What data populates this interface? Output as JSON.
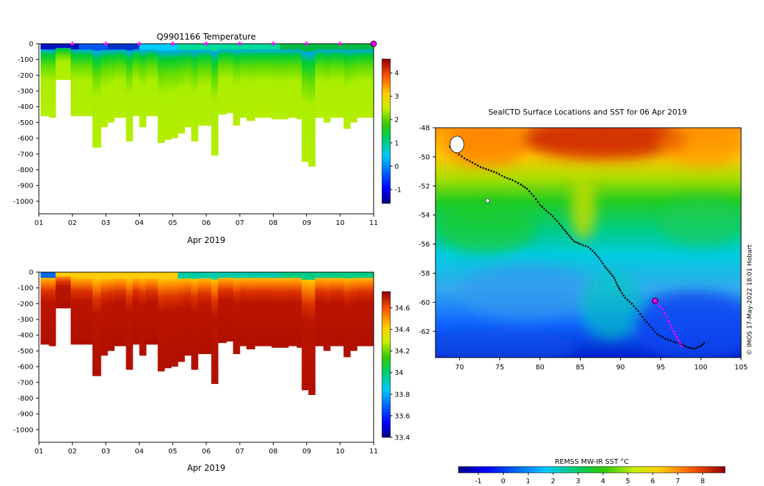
{
  "chart_data": [
    {
      "type": "heatmap",
      "title": "Q9901166  Temperature",
      "xlabel": "Apr 2019",
      "ylabel": "",
      "x_ticks": [
        "01",
        "02",
        "03",
        "04",
        "05",
        "06",
        "07",
        "08",
        "09",
        "10",
        "11"
      ],
      "y_ticks": [
        0,
        -100,
        -200,
        -300,
        -400,
        -500,
        -600,
        -700,
        -800,
        -900,
        -1000
      ],
      "xlim": [
        1,
        11
      ],
      "ylim": [
        -1080,
        0
      ],
      "colorbar": {
        "min": -1.6,
        "max": 4.6,
        "ticks": [
          -1,
          0,
          1,
          2,
          3,
          4
        ]
      },
      "markers_days": [
        2,
        3,
        4,
        5,
        6,
        7,
        8,
        9,
        10
      ],
      "current_marker_day": 11,
      "profiles": [
        {
          "day": 1.05,
          "depth": 460
        },
        {
          "day": 1.3,
          "depth": 470
        },
        {
          "day": 1.5,
          "depth": 230
        },
        {
          "day": 1.7,
          "depth": 230
        },
        {
          "day": 1.95,
          "depth": 460
        },
        {
          "day": 2.2,
          "depth": 460
        },
        {
          "day": 2.45,
          "depth": 460
        },
        {
          "day": 2.6,
          "depth": 660
        },
        {
          "day": 2.85,
          "depth": 530
        },
        {
          "day": 3.05,
          "depth": 500
        },
        {
          "day": 3.25,
          "depth": 470
        },
        {
          "day": 3.45,
          "depth": 470
        },
        {
          "day": 3.6,
          "depth": 620
        },
        {
          "day": 3.8,
          "depth": 460
        },
        {
          "day": 4.0,
          "depth": 530
        },
        {
          "day": 4.2,
          "depth": 460
        },
        {
          "day": 4.4,
          "depth": 460
        },
        {
          "day": 4.55,
          "depth": 630
        },
        {
          "day": 4.75,
          "depth": 610
        },
        {
          "day": 4.95,
          "depth": 600
        },
        {
          "day": 5.15,
          "depth": 570
        },
        {
          "day": 5.35,
          "depth": 530
        },
        {
          "day": 5.55,
          "depth": 620
        },
        {
          "day": 5.75,
          "depth": 520
        },
        {
          "day": 5.95,
          "depth": 520
        },
        {
          "day": 6.15,
          "depth": 710
        },
        {
          "day": 6.35,
          "depth": 450
        },
        {
          "day": 6.6,
          "depth": 440
        },
        {
          "day": 6.8,
          "depth": 520
        },
        {
          "day": 7.0,
          "depth": 470
        },
        {
          "day": 7.2,
          "depth": 490
        },
        {
          "day": 7.45,
          "depth": 470
        },
        {
          "day": 7.7,
          "depth": 470
        },
        {
          "day": 7.95,
          "depth": 480
        },
        {
          "day": 8.2,
          "depth": 480
        },
        {
          "day": 8.45,
          "depth": 470
        },
        {
          "day": 8.7,
          "depth": 480
        },
        {
          "day": 8.85,
          "depth": 750
        },
        {
          "day": 9.05,
          "depth": 780
        },
        {
          "day": 9.25,
          "depth": 470
        },
        {
          "day": 9.5,
          "depth": 500
        },
        {
          "day": 9.7,
          "depth": 470
        },
        {
          "day": 9.9,
          "depth": 470
        },
        {
          "day": 10.1,
          "depth": 540
        },
        {
          "day": 10.3,
          "depth": 500
        },
        {
          "day": 10.5,
          "depth": 470
        },
        {
          "day": 10.8,
          "depth": 470
        }
      ]
    },
    {
      "type": "heatmap",
      "title": "",
      "xlabel": "Apr 2019",
      "ylabel": "",
      "x_ticks": [
        "01",
        "02",
        "03",
        "04",
        "05",
        "06",
        "07",
        "08",
        "09",
        "10",
        "11"
      ],
      "y_ticks": [
        0,
        -100,
        -200,
        -300,
        -400,
        -500,
        -600,
        -700,
        -800,
        -900,
        -1000
      ],
      "xlim": [
        1,
        11
      ],
      "ylim": [
        -1080,
        0
      ],
      "colorbar": {
        "min": 33.4,
        "max": 34.75,
        "ticks": [
          "33.4",
          "33.6",
          "33.8",
          "34",
          "34.2",
          "34.4",
          "34.6"
        ]
      }
    },
    {
      "type": "heatmap",
      "title": "SealCTD Surface Locations and SST for 06 Apr 2019",
      "xlabel": "",
      "ylabel": "",
      "x_ticks": [
        70,
        75,
        80,
        85,
        90,
        95,
        100,
        105
      ],
      "y_ticks": [
        -48,
        -50,
        -52,
        -54,
        -56,
        -58,
        -60,
        -62
      ],
      "xlim": [
        67,
        105
      ],
      "ylim": [
        -63.8,
        -48
      ],
      "track": [
        [
          68.8,
          -49.3
        ],
        [
          69.6,
          -49.7
        ],
        [
          70.6,
          -50.1
        ],
        [
          71.6,
          -50.4
        ],
        [
          72.6,
          -50.7
        ],
        [
          73.6,
          -50.9
        ],
        [
          74.6,
          -51.1
        ],
        [
          75.6,
          -51.4
        ],
        [
          76.6,
          -51.6
        ],
        [
          77.6,
          -51.9
        ],
        [
          78.4,
          -52.2
        ],
        [
          79.2,
          -52.7
        ],
        [
          80.0,
          -53.3
        ],
        [
          80.8,
          -53.7
        ],
        [
          81.6,
          -54.1
        ],
        [
          82.4,
          -54.6
        ],
        [
          83.0,
          -55.0
        ],
        [
          83.6,
          -55.4
        ],
        [
          84.2,
          -55.8
        ],
        [
          85.0,
          -56.0
        ],
        [
          86.0,
          -56.2
        ],
        [
          86.8,
          -56.6
        ],
        [
          87.4,
          -57.0
        ],
        [
          88.0,
          -57.5
        ],
        [
          88.6,
          -57.9
        ],
        [
          89.2,
          -58.3
        ],
        [
          89.6,
          -58.8
        ],
        [
          90.0,
          -59.2
        ],
        [
          90.6,
          -59.7
        ],
        [
          91.4,
          -60.1
        ],
        [
          92.2,
          -60.6
        ],
        [
          93.0,
          -61.2
        ],
        [
          93.8,
          -61.7
        ],
        [
          94.6,
          -62.2
        ],
        [
          95.6,
          -62.5
        ],
        [
          96.6,
          -62.7
        ],
        [
          97.6,
          -62.9
        ],
        [
          98.4,
          -63.1
        ],
        [
          99.2,
          -63.2
        ],
        [
          100.0,
          -63.0
        ],
        [
          100.6,
          -62.7
        ]
      ],
      "recent_track": [
        [
          94.3,
          -59.9
        ],
        [
          95.2,
          -60.5
        ],
        [
          96.0,
          -61.3
        ],
        [
          96.6,
          -62.0
        ],
        [
          97.2,
          -62.6
        ],
        [
          97.8,
          -63.2
        ]
      ],
      "current_location": [
        94.3,
        -59.9
      ]
    }
  ],
  "sst_colorbar": {
    "label": "REMSS MW-IR SST °C",
    "min": -1.8,
    "max": 8.9,
    "ticks": [
      -1,
      0,
      1,
      2,
      3,
      4,
      5,
      6,
      7,
      8
    ]
  },
  "credit": "© IMOS 17-May-2022 18:01 Hobart",
  "palette": [
    "#00007f",
    "#0000d4",
    "#0040ff",
    "#00a0ff",
    "#00e4ff",
    "#00d8a0",
    "#00c832",
    "#3ccc00",
    "#a0e000",
    "#d8f000",
    "#ffe800",
    "#ffb400",
    "#ff7c00",
    "#f03c00",
    "#c00000",
    "#7f0000"
  ]
}
